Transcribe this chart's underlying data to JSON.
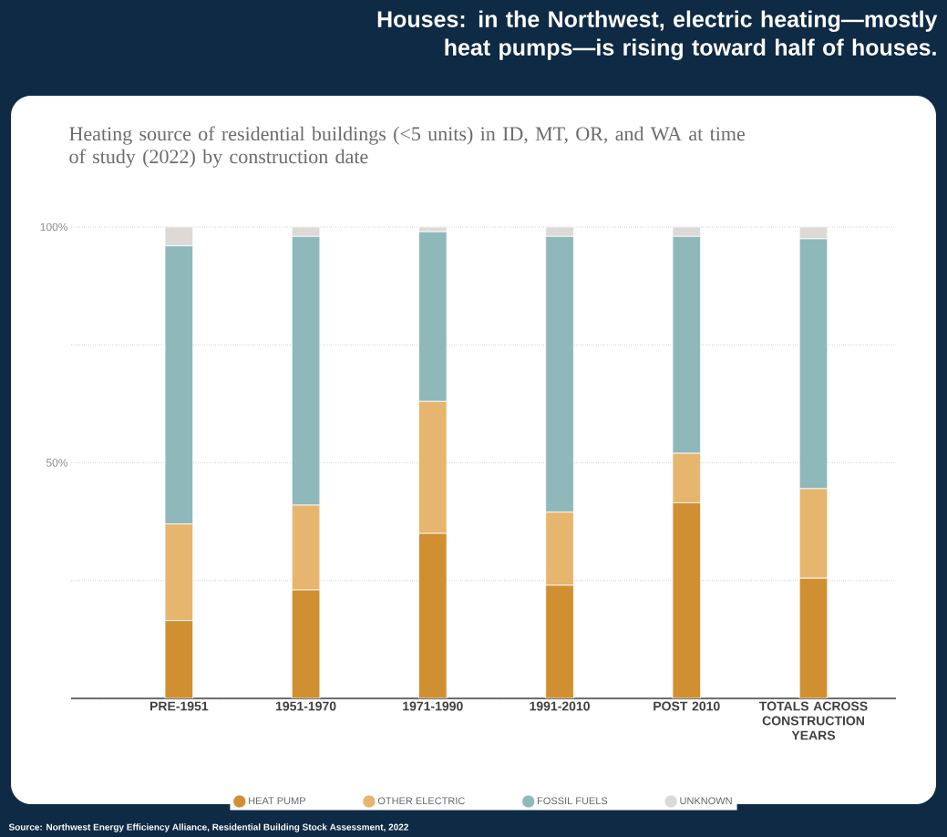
{
  "chart_data": {
    "type": "bar",
    "stacked": true,
    "title": "Houses: in the Northwest, electric heating—mostly heat pumps—is rising toward half of houses.",
    "subtitle": "Heating source of residential buildings (<5 units) in ID, MT, OR, and WA at time of study (2022) by construction date",
    "categories": [
      "PRE-1951",
      "1951-1970",
      "1971-1990",
      "1991-2010",
      "POST 2010",
      "TOTALS ACROSS CONSTRUCTION YEARS"
    ],
    "series": [
      {
        "name": "HEAT PUMP",
        "color": "#d08f31",
        "values": [
          16.5,
          23,
          35,
          24,
          41.5,
          25.5
        ]
      },
      {
        "name": "OTHER ELECTRIC",
        "color": "#e6b56e",
        "values": [
          20.5,
          18,
          28,
          15.5,
          10.5,
          19
        ]
      },
      {
        "name": "FOSSIL FUELS",
        "color": "#8fb8bb",
        "values": [
          59,
          57,
          36,
          58.5,
          46,
          53
        ]
      },
      {
        "name": "UNKNOWN",
        "color": "#dcd9d6",
        "values": [
          4,
          2,
          1,
          2,
          2,
          2.5
        ]
      }
    ],
    "ylim": [
      0,
      100
    ],
    "yticks": [
      {
        "value": 0,
        "label": null
      },
      {
        "value": 25,
        "label": null
      },
      {
        "value": 50,
        "label": "50%"
      },
      {
        "value": 75,
        "label": null
      },
      {
        "value": 100,
        "label": "100%"
      }
    ],
    "grid": "y",
    "legend": "bottom",
    "annotations": [
      "Source: Northwest Energy Efficiency Alliance, Residential Building Stock Assessment, 2022"
    ]
  }
}
